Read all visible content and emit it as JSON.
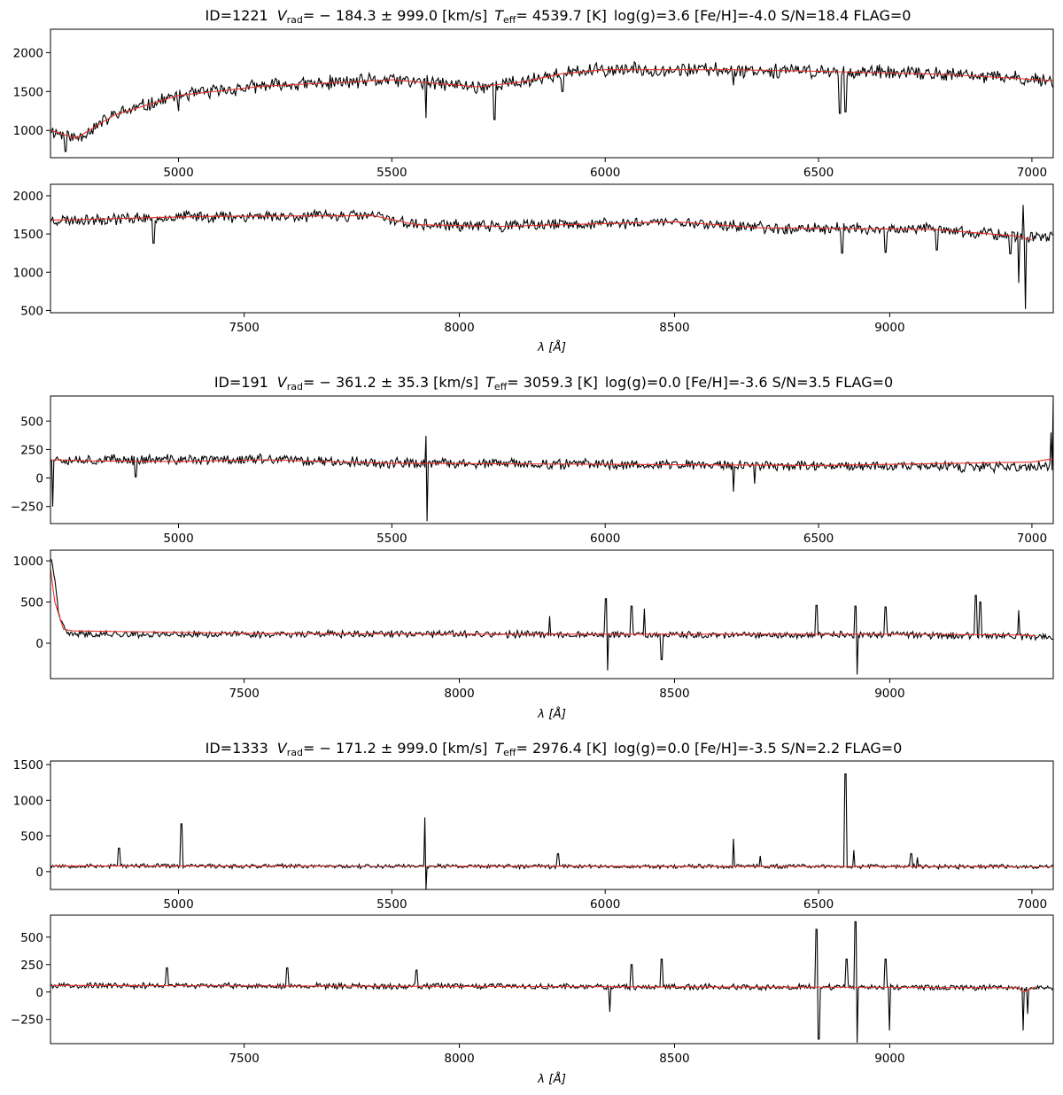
{
  "figure": {
    "colors": {
      "spectrum": "#000000",
      "model": "#e8312a",
      "frame": "#000000"
    }
  },
  "chart_data": [
    {
      "type": "line",
      "title": {
        "id": "ID=1221",
        "vrad": "= − 184.3 ± 999.0 [km/s]",
        "teff": "= 4539.7 [K]",
        "rest": "log(g)=3.6  [Fe/H]=-4.0  S/N=18.4  FLAG=0"
      },
      "xlabel": "λ [Å]",
      "panels": [
        {
          "xlim": [
            4700,
            7050
          ],
          "ylim": [
            650,
            2300
          ],
          "xticks": [
            "5000",
            "5500",
            "6000",
            "6500",
            "7000"
          ],
          "yticks": [
            "1000",
            "1500",
            "2000"
          ],
          "model": {
            "x": [
              4700,
              4760,
              4850,
              5000,
              5200,
              5500,
              5700,
              5800,
              5900,
              6000,
              6300,
              6500,
              6800,
              7050
            ],
            "y": [
              1000,
              900,
              1200,
              1450,
              1570,
              1650,
              1560,
              1620,
              1730,
              1780,
              1780,
              1760,
              1720,
              1640
            ]
          },
          "spectrum": {
            "continuum": [
              [
                4700,
                1000
              ],
              [
                4760,
                900
              ],
              [
                4850,
                1200
              ],
              [
                5000,
                1450
              ],
              [
                5200,
                1570
              ],
              [
                5500,
                1650
              ],
              [
                5700,
                1560
              ],
              [
                5800,
                1620
              ],
              [
                5900,
                1730
              ],
              [
                6000,
                1780
              ],
              [
                6300,
                1780
              ],
              [
                6500,
                1760
              ],
              [
                6800,
                1720
              ],
              [
                7050,
                1640
              ]
            ],
            "noise": 90,
            "seed": 11,
            "spikes": [
              [
                4735,
                730
              ],
              [
                5000,
                1250
              ],
              [
                5580,
                1160
              ],
              [
                5740,
                1140
              ],
              [
                5900,
                1500
              ],
              [
                6300,
                1580
              ],
              [
                6550,
                1220
              ],
              [
                6563,
                1240
              ]
            ]
          }
        },
        {
          "xlim": [
            7050,
            9380
          ],
          "ylim": [
            470,
            2150
          ],
          "xticks": [
            "7500",
            "8000",
            "8500",
            "9000"
          ],
          "yticks": [
            "500",
            "1000",
            "1500",
            "2000"
          ],
          "model": {
            "x": [
              7050,
              7400,
              7800,
              7900,
              8100,
              8500,
              8700,
              9100,
              9300,
              9330
            ],
            "y": [
              1680,
              1730,
              1740,
              1620,
              1600,
              1660,
              1580,
              1560,
              1470,
              1420
            ]
          },
          "spectrum": {
            "continuum": [
              [
                7050,
                1680
              ],
              [
                7400,
                1730
              ],
              [
                7800,
                1740
              ],
              [
                7900,
                1620
              ],
              [
                8100,
                1600
              ],
              [
                8500,
                1660
              ],
              [
                8700,
                1580
              ],
              [
                9100,
                1560
              ],
              [
                9300,
                1470
              ],
              [
                9340,
                1450
              ]
            ],
            "noise": 75,
            "seed": 23,
            "spikes": [
              [
                7290,
                1380
              ],
              [
                8890,
                1250
              ],
              [
                8990,
                1260
              ],
              [
                9110,
                1290
              ],
              [
                9280,
                1240
              ],
              [
                9300,
                860
              ],
              [
                9310,
                1880
              ],
              [
                9315,
                520
              ],
              [
                9330,
                1520
              ]
            ]
          }
        }
      ]
    },
    {
      "type": "line",
      "title": {
        "id": "ID=191",
        "vrad": "= − 361.2 ± 35.3 [km/s]",
        "teff": "= 3059.3 [K]",
        "rest": "log(g)=0.0  [Fe/H]=-3.6  S/N=3.5  FLAG=0"
      },
      "xlabel": "λ [Å]",
      "panels": [
        {
          "xlim": [
            4700,
            7050
          ],
          "ylim": [
            -400,
            720
          ],
          "xticks": [
            "5000",
            "5500",
            "6000",
            "6500",
            "7000"
          ],
          "yticks": [
            "−250",
            "0",
            "250",
            "500"
          ],
          "model": {
            "x": [
              4700,
              4800,
              5000,
              5200,
              5500,
              6000,
              6500,
              7000,
              7050
            ],
            "y": [
              160,
              150,
              145,
              160,
              130,
              120,
              110,
              140,
              170
            ]
          },
          "spectrum": {
            "continuum": [
              [
                4700,
                170
              ],
              [
                4800,
                160
              ],
              [
                5000,
                160
              ],
              [
                5200,
                165
              ],
              [
                5500,
                130
              ],
              [
                6000,
                120
              ],
              [
                6500,
                110
              ],
              [
                6900,
                95
              ],
              [
                7040,
                100
              ]
            ],
            "noise": 45,
            "seed": 37,
            "spikes": [
              [
                4705,
                -250
              ],
              [
                4900,
                10
              ],
              [
                5580,
                370
              ],
              [
                5582,
                -380
              ],
              [
                6300,
                -120
              ],
              [
                6350,
                -50
              ],
              [
                7045,
                400
              ],
              [
                7050,
                700
              ]
            ]
          }
        },
        {
          "xlim": [
            7050,
            9380
          ],
          "ylim": [
            -430,
            1130
          ],
          "xticks": [
            "7500",
            "8000",
            "8500",
            "9000"
          ],
          "yticks": [
            "0",
            "500",
            "1000"
          ],
          "model": {
            "x": [
              7050,
              7060,
              7080,
              7100,
              7500,
              8000,
              8500,
              9000,
              9300,
              9340
            ],
            "y": [
              900,
              500,
              170,
              150,
              120,
              110,
              110,
              110,
              100,
              90
            ]
          },
          "spectrum": {
            "continuum": [
              [
                7050,
                1050
              ],
              [
                7060,
                800
              ],
              [
                7070,
                300
              ],
              [
                7090,
                110
              ],
              [
                7500,
                110
              ],
              [
                8000,
                110
              ],
              [
                8500,
                100
              ],
              [
                9000,
                100
              ],
              [
                9340,
                80
              ]
            ],
            "noise": 40,
            "seed": 41,
            "spikes": [
              [
                8210,
                330
              ],
              [
                8340,
                540
              ],
              [
                8345,
                -330
              ],
              [
                8400,
                450
              ],
              [
                8430,
                420
              ],
              [
                8470,
                -200
              ],
              [
                8830,
                460
              ],
              [
                8920,
                450
              ],
              [
                8925,
                -380
              ],
              [
                8990,
                440
              ],
              [
                9200,
                580
              ],
              [
                9210,
                500
              ],
              [
                9300,
                400
              ]
            ]
          }
        }
      ]
    },
    {
      "type": "line",
      "title": {
        "id": "ID=1333",
        "vrad": "= − 171.2 ± 999.0 [km/s]",
        "teff": "= 2976.4 [K]",
        "rest": "log(g)=0.0  [Fe/H]=-3.5  S/N=2.2  FLAG=0"
      },
      "xlabel": "λ [Å]",
      "panels": [
        {
          "xlim": [
            4700,
            7050
          ],
          "ylim": [
            -250,
            1550
          ],
          "xticks": [
            "5000",
            "5500",
            "6000",
            "6500",
            "7000"
          ],
          "yticks": [
            "0",
            "500",
            "1000",
            "1500"
          ],
          "model": {
            "x": [
              4700,
              7050
            ],
            "y": [
              80,
              70
            ]
          },
          "spectrum": {
            "continuum": [
              [
                4700,
                80
              ],
              [
                7050,
                70
              ]
            ],
            "noise": 30,
            "seed": 53,
            "spikes": [
              [
                4860,
                330
              ],
              [
                5007,
                670
              ],
              [
                5577,
                760
              ],
              [
                5580,
                -250
              ],
              [
                5890,
                250
              ],
              [
                6300,
                460
              ],
              [
                6363,
                220
              ],
              [
                6563,
                1370
              ],
              [
                6583,
                300
              ],
              [
                6717,
                250
              ],
              [
                6731,
                200
              ]
            ]
          }
        },
        {
          "xlim": [
            7050,
            9380
          ],
          "ylim": [
            -470,
            700
          ],
          "xticks": [
            "7500",
            "8000",
            "8500",
            "9000"
          ],
          "yticks": [
            "−250",
            "0",
            "250",
            "500"
          ],
          "model": {
            "x": [
              7050,
              9300,
              9310,
              9340
            ],
            "y": [
              60,
              40,
              0,
              50
            ]
          },
          "spectrum": {
            "continuum": [
              [
                7050,
                60
              ],
              [
                9340,
                40
              ]
            ],
            "noise": 25,
            "seed": 67,
            "spikes": [
              [
                7320,
                220
              ],
              [
                7600,
                220
              ],
              [
                7900,
                200
              ],
              [
                8350,
                -180
              ],
              [
                8400,
                250
              ],
              [
                8470,
                300
              ],
              [
                8830,
                570
              ],
              [
                8835,
                -430
              ],
              [
                8900,
                300
              ],
              [
                8920,
                640
              ],
              [
                8925,
                -460
              ],
              [
                8990,
                300
              ],
              [
                9000,
                -350
              ],
              [
                9310,
                -350
              ],
              [
                9320,
                -200
              ]
            ]
          }
        }
      ]
    }
  ]
}
